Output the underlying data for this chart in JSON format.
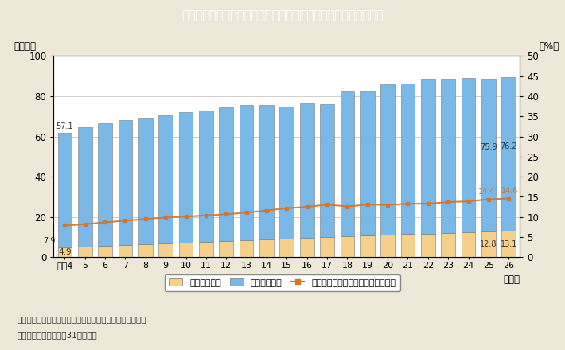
{
  "years": [
    "平成4",
    "5",
    "6",
    "7",
    "8",
    "9",
    "10",
    "11",
    "12",
    "13",
    "14",
    "15",
    "16",
    "17",
    "18",
    "19",
    "20",
    "21",
    "22",
    "23",
    "24",
    "25",
    "26"
  ],
  "female_researchers": [
    4.9,
    5.3,
    5.8,
    6.2,
    6.6,
    7.0,
    7.3,
    7.6,
    8.0,
    8.4,
    8.8,
    9.2,
    9.6,
    10.0,
    10.4,
    10.8,
    11.2,
    11.5,
    11.8,
    12.1,
    12.4,
    12.8,
    13.1
  ],
  "total_researchers": [
    62.0,
    64.5,
    66.5,
    68.0,
    69.5,
    70.5,
    72.0,
    73.0,
    74.5,
    75.5,
    75.5,
    75.0,
    76.5,
    76.0,
    82.5,
    82.5,
    86.0,
    86.5,
    88.5,
    88.5,
    89.0,
    88.7,
    89.3
  ],
  "female_ratio": [
    7.9,
    8.2,
    8.7,
    9.1,
    9.5,
    9.9,
    10.1,
    10.4,
    10.7,
    11.1,
    11.6,
    12.2,
    12.5,
    13.1,
    12.6,
    13.1,
    13.0,
    13.3,
    13.3,
    13.7,
    13.9,
    14.4,
    14.6
  ],
  "female_color": "#f5d08c",
  "male_color": "#7ab8e8",
  "line_color": "#d4752a",
  "background_color": "#ede8d8",
  "plot_bg_color": "#ffffff",
  "title": "Ｉ－６－８図　女性研究者数及び研究者に占める女性割合の推移",
  "title_bg_color": "#2bbdcb",
  "ylabel_left": "（万人）",
  "ylabel_right": "（%）",
  "xlabel": "（年）",
  "ylim_left": [
    0,
    100
  ],
  "ylim_right": [
    0,
    50
  ],
  "yticks_left": [
    0,
    20,
    40,
    60,
    80,
    100
  ],
  "yticks_right": [
    0,
    5,
    10,
    15,
    20,
    25,
    30,
    35,
    40,
    45,
    50
  ],
  "legend_female": "女性研究者数",
  "legend_male": "男性研究者数",
  "legend_ratio": "女性研究者の占める割合（右目盛）",
  "note1": "（備考）１．総務省「科学技術研究調査報告」より作成。",
  "note2": "　　　　２．各年３月31日現在。"
}
